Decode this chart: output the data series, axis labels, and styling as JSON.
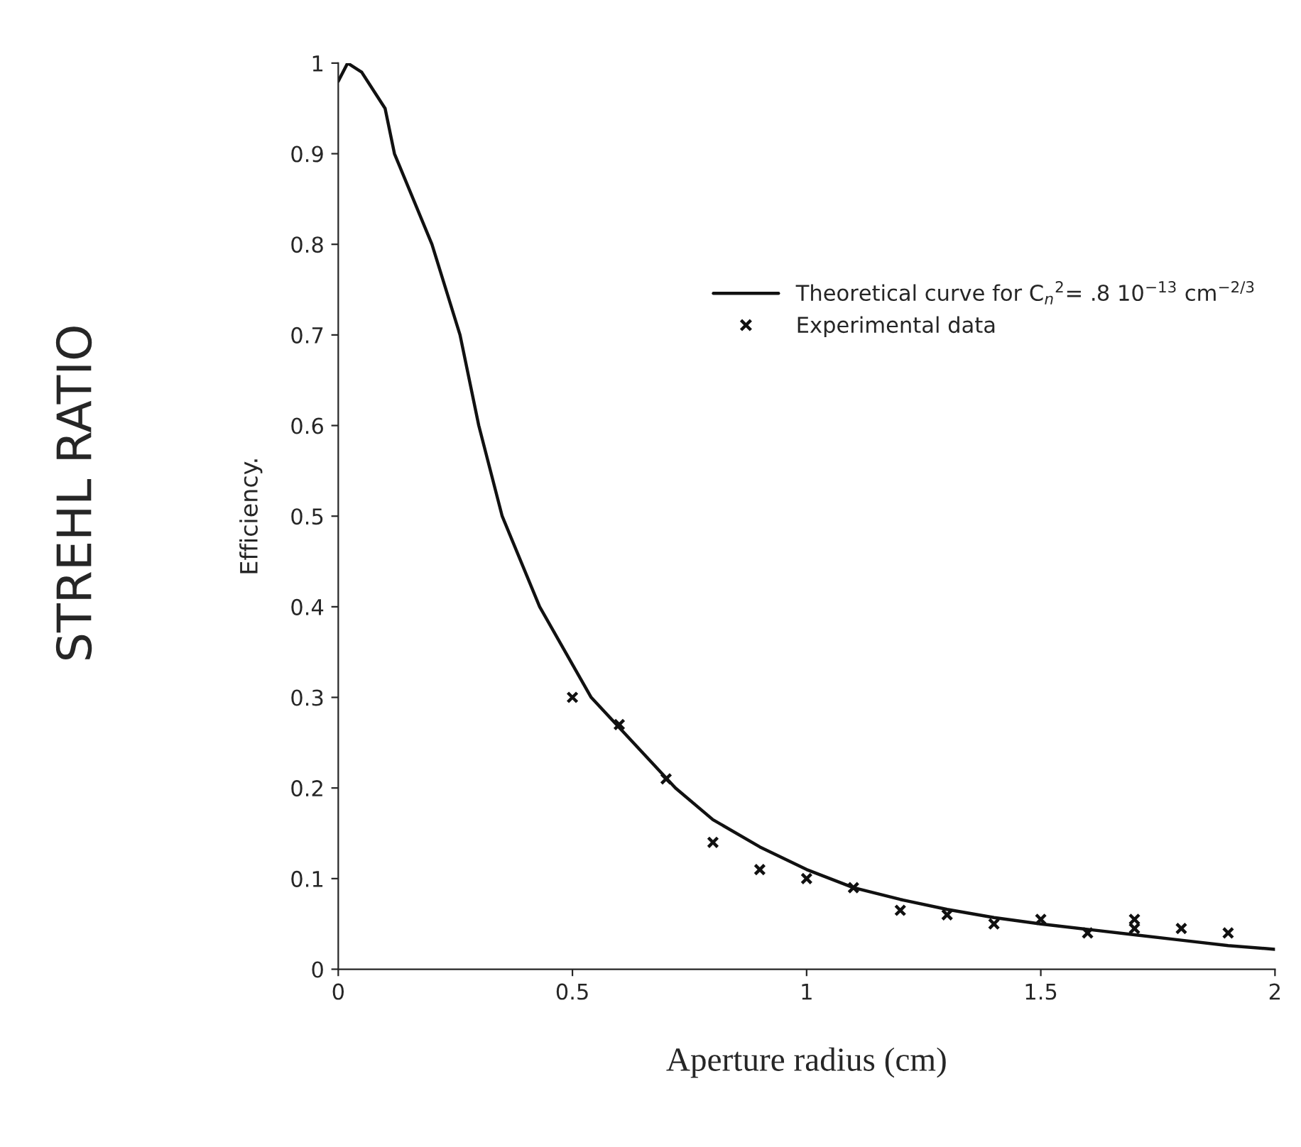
{
  "chart_data": {
    "type": "line",
    "xlabel": "Aperture radius (cm)",
    "ylabel": "Efficiency.",
    "annotations": [
      "STREHL RATIO"
    ],
    "series": [
      {
        "name": "Theoretical curve for C$_{n}$$^{2}$= .8 10$^{−13}$ cm$^{−2/3}$",
        "color": "#111111",
        "x": [
          0,
          0.02,
          0.05,
          0.1,
          0.12,
          0.2,
          0.26,
          0.3,
          0.35,
          0.43,
          0.54,
          0.72,
          0.8,
          0.9,
          1.0,
          1.1,
          1.2,
          1.3,
          1.4,
          1.5,
          1.6,
          1.7,
          1.8,
          1.9,
          2.0
        ],
        "values": [
          0.98,
          1.0,
          0.99,
          0.95,
          0.9,
          0.8,
          0.7,
          0.6,
          0.5,
          0.4,
          0.3,
          0.2,
          0.165,
          0.135,
          0.11,
          0.09,
          0.077,
          0.066,
          0.057,
          0.05,
          0.044,
          0.038,
          0.032,
          0.026,
          0.022
        ]
      },
      {
        "name": "Experimental data",
        "type": "scatter",
        "color": "#111111",
        "marker": "cross",
        "x": [
          0.5,
          0.6,
          0.7,
          0.8,
          0.9,
          1.0,
          1.1,
          1.2,
          1.3,
          1.4,
          1.5,
          1.6,
          1.7,
          1.7,
          1.8,
          1.9
        ],
        "values": [
          0.3,
          0.27,
          0.21,
          0.14,
          0.11,
          0.1,
          0.09,
          0.065,
          0.06,
          0.05,
          0.055,
          0.04,
          0.055,
          0.045,
          0.045,
          0.04
        ]
      }
    ],
    "xlim": [
      0,
      2
    ],
    "ylim": [
      0,
      1
    ],
    "xticks": [
      0,
      0.5,
      1,
      1.5,
      2
    ],
    "yticks": [
      0,
      0.1,
      0.2,
      0.3,
      0.4,
      0.5,
      0.6,
      0.7,
      0.8,
      0.9,
      1
    ],
    "grid": false,
    "legend": "top right"
  }
}
